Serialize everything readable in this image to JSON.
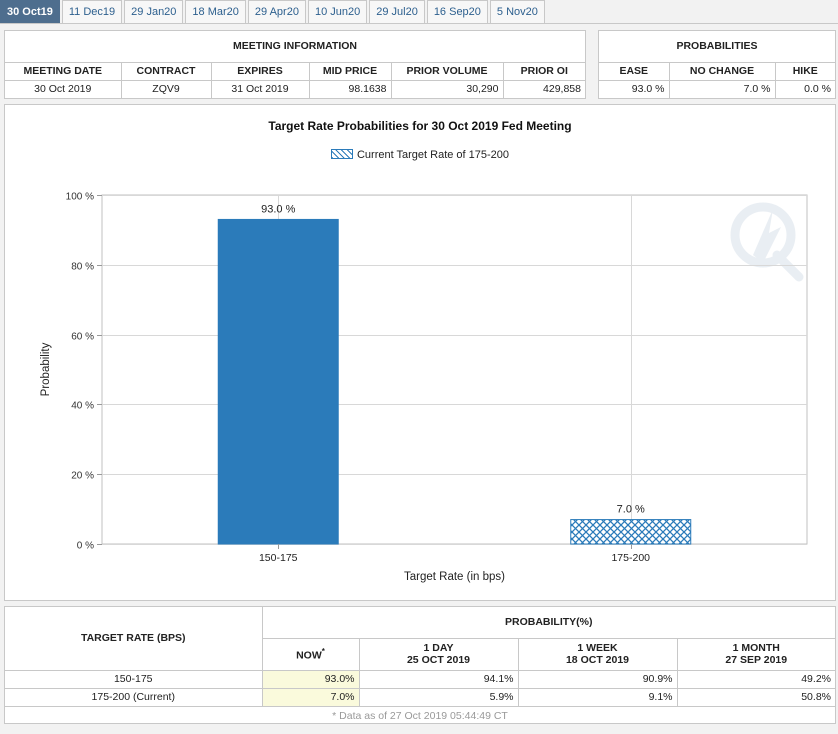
{
  "tabs": [
    {
      "label": "30 Oct19",
      "active": true
    },
    {
      "label": "11 Dec19"
    },
    {
      "label": "29 Jan20"
    },
    {
      "label": "18 Mar20"
    },
    {
      "label": "29 Apr20"
    },
    {
      "label": "10 Jun20"
    },
    {
      "label": "29 Jul20"
    },
    {
      "label": "16 Sep20"
    },
    {
      "label": "5 Nov20"
    }
  ],
  "meeting_info": {
    "title": "MEETING INFORMATION",
    "headers": [
      "MEETING DATE",
      "CONTRACT",
      "EXPIRES",
      "MID PRICE",
      "PRIOR VOLUME",
      "PRIOR OI"
    ],
    "row": [
      "30 Oct 2019",
      "ZQV9",
      "31 Oct 2019",
      "98.1638",
      "30,290",
      "429,858"
    ]
  },
  "probabilities": {
    "title": "PROBABILITIES",
    "headers": [
      "EASE",
      "NO CHANGE",
      "HIKE"
    ],
    "row": [
      "93.0 %",
      "7.0 %",
      "0.0 %"
    ]
  },
  "chart": {
    "title": "Target Rate Probabilities for 30 Oct 2019 Fed Meeting",
    "legend": "Current Target Rate of 175-200",
    "ylabel": "Probability",
    "xlabel": "Target Rate (in bps)",
    "bar_color": "#2b7bba"
  },
  "chart_data": {
    "type": "bar",
    "title": "Target Rate Probabilities for 30 Oct 2019 Fed Meeting",
    "xlabel": "Target Rate (in bps)",
    "ylabel": "Probability",
    "categories": [
      "150-175",
      "175-200"
    ],
    "values": [
      93.0,
      7.0
    ],
    "data_labels": [
      "93.0 %",
      "7.0 %"
    ],
    "hatched": [
      false,
      true
    ],
    "ylim": [
      0,
      100
    ],
    "yticks": [
      "0 %",
      "20 %",
      "40 %",
      "60 %",
      "80 %",
      "100 %"
    ],
    "grid": true,
    "legend": "top-center"
  },
  "prob_table": {
    "target_header": "TARGET RATE (BPS)",
    "group_header": "PROBABILITY(%)",
    "cols": [
      {
        "l1": "NOW",
        "l2": ""
      },
      {
        "l1": "1 DAY",
        "l2": "25 OCT 2019"
      },
      {
        "l1": "1 WEEK",
        "l2": "18 OCT 2019"
      },
      {
        "l1": "1 MONTH",
        "l2": "27 SEP 2019"
      }
    ],
    "now_mark": "*",
    "rows": [
      {
        "rate": "150-175",
        "vals": [
          "93.0%",
          "94.1%",
          "90.9%",
          "49.2%"
        ]
      },
      {
        "rate": "175-200 (Current)",
        "vals": [
          "7.0%",
          "5.9%",
          "9.1%",
          "50.8%"
        ]
      }
    ],
    "footnote": "* Data as of 27 Oct 2019 05:44:49 CT"
  }
}
